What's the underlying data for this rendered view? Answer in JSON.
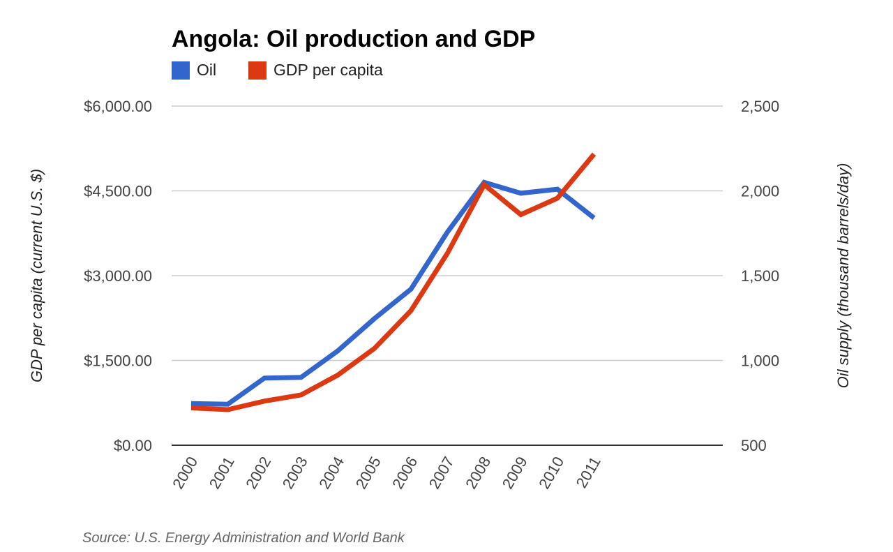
{
  "chart_data": {
    "type": "line",
    "title": "Angola: Oil production and GDP",
    "categories": [
      "2000",
      "2001",
      "2002",
      "2003",
      "2004",
      "2005",
      "2006",
      "2007",
      "2008",
      "2009",
      "2010",
      "2011"
    ],
    "series": [
      {
        "name": "Oil",
        "color": "#3366cc",
        "axis": "right",
        "values": [
          746,
          742,
          896,
          900,
          1056,
          1246,
          1420,
          1758,
          2050,
          1986,
          2010,
          1840
        ]
      },
      {
        "name": "GDP per capita",
        "color": "#dc3912",
        "axis": "left",
        "values": [
          660,
          630,
          780,
          890,
          1240,
          1710,
          2380,
          3400,
          4610,
          4080,
          4370,
          5150
        ]
      }
    ],
    "left_axis": {
      "label": "GDP per capita (current U.S. $)",
      "ylim": [
        0,
        6000
      ],
      "ticks": [
        "$0.00",
        "$1,500.00",
        "$3,000.00",
        "$4,500.00",
        "$6,000.00"
      ]
    },
    "right_axis": {
      "label": "Oil supply (thousand barrels/day)",
      "ylim": [
        500,
        2500
      ],
      "ticks": [
        "500",
        "1,000",
        "1,500",
        "2,000",
        "2,500"
      ]
    },
    "legend_position": "top-left",
    "grid": true,
    "source": "Source: U.S. Energy Administration and World Bank"
  }
}
